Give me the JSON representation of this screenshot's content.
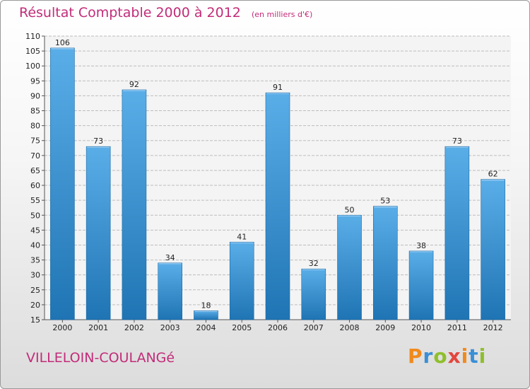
{
  "header": {
    "title": "Résultat Comptable 2000 à 2012",
    "unit": "(en milliers d'€)"
  },
  "footer": {
    "commune": "VILLELOIN-COULANGé",
    "brand": "Proxiti"
  },
  "colors": {
    "accent": "#c22c79",
    "bar_light": "#5aaee8",
    "bar_dark": "#1f74b3",
    "grid": "#bdbdbd"
  },
  "chart_data": {
    "type": "bar",
    "title": "Résultat Comptable 2000 à 2012",
    "subtitle": "(en milliers d'€)",
    "xlabel": "",
    "ylabel": "",
    "categories": [
      "2000",
      "2001",
      "2002",
      "2003",
      "2004",
      "2005",
      "2006",
      "2007",
      "2008",
      "2009",
      "2010",
      "2011",
      "2012"
    ],
    "values": [
      106,
      73,
      92,
      34,
      18,
      41,
      91,
      32,
      50,
      53,
      38,
      73,
      62
    ],
    "ylim": [
      15,
      110
    ],
    "yticks": [
      15,
      20,
      25,
      30,
      35,
      40,
      45,
      50,
      55,
      60,
      65,
      70,
      75,
      80,
      85,
      90,
      95,
      100,
      105,
      110
    ],
    "grid": true,
    "legend": "none"
  }
}
